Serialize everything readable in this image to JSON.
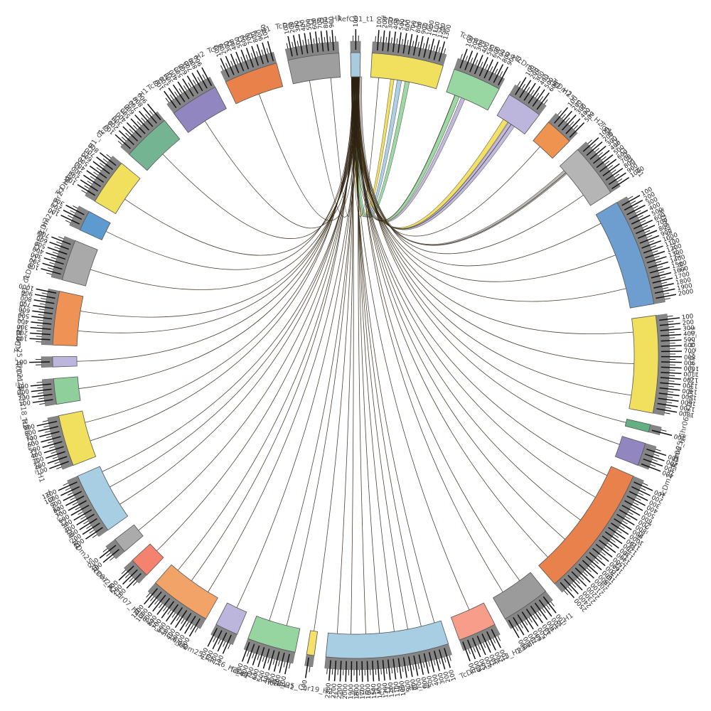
{
  "chart_data": {
    "type": "circos",
    "title": "",
    "reference": {
      "label": "RefC01_t1",
      "color": "#A9CBE0",
      "size": 190,
      "tick_labels": [
        100
      ]
    },
    "axis": {
      "tick_interval": 100,
      "minor_interval": 50,
      "units": "x100"
    },
    "segments": [
      {
        "label": "TcDm25_Chr10_H1",
        "color": "#F0E05E",
        "size": 1400,
        "links": [
          0.12
        ]
      },
      {
        "label": "TcDm25_Chr10_H2",
        "color": "#98D6A2",
        "size": 950,
        "links": [
          0.2
        ]
      },
      {
        "label": "TcDm25_Chr22_H2",
        "color": "#BDB6DC",
        "size": 700,
        "links": [
          0.5
        ]
      },
      {
        "label": "TcDm25_Chr22_H2_c1",
        "color": "#EF9350",
        "size": 550,
        "links": [
          0.35
        ]
      },
      {
        "label": "TcDm25_Chr02_H1",
        "color": "#B5B5B5",
        "size": 1050,
        "links": [
          0.18,
          0.75
        ]
      },
      {
        "label": "TcDm25_Chr02_H2",
        "color": "#6D9ECF",
        "size": 2100,
        "links": [
          0.1,
          0.45,
          0.8
        ]
      },
      {
        "label": "TcDm25_Chr02_H2_c1",
        "color": "#F0E05E",
        "size": 1900,
        "links": [
          0.15,
          0.5,
          0.85
        ]
      },
      {
        "label": "TcDm25_Chr06_H1",
        "color": "#63B183",
        "size": 150,
        "links": [
          0.5
        ]
      },
      {
        "label": "TcDm25_Chr06_H2",
        "color": "#9186C0",
        "size": 450,
        "links": [
          0.4
        ]
      },
      {
        "label": "TcDm25_Chr30_H2_c1",
        "color": "#E8814C",
        "size": 2600,
        "links": [
          0.08,
          0.28,
          0.5,
          0.7,
          0.9
        ]
      },
      {
        "label": "TcDm25_Chr19_H1",
        "color": "#9B9B9B",
        "size": 950,
        "links": [
          0.3,
          0.75
        ]
      },
      {
        "label": "TcDm25_Chr13_H2",
        "color": "#F99D8B",
        "size": 750,
        "links": [
          0.45
        ]
      },
      {
        "label": "TcDm25_Chr30_H1_c1",
        "color": "#A8CEE4",
        "size": 2400,
        "links": [
          0.06,
          0.18,
          0.3,
          0.42,
          0.55,
          0.67,
          0.8,
          0.92
        ]
      },
      {
        "label": "TcDm25_Chr19_H2_c1",
        "color": "#F4E06A",
        "size": 150,
        "links": [
          0.5
        ]
      },
      {
        "label": "TcDm25_Chr08_H1",
        "color": "#96D5A0",
        "size": 950,
        "links": [
          0.3,
          0.7
        ]
      },
      {
        "label": "TcDm25_Chr16_H2_c1",
        "color": "#BDB6DC",
        "size": 450,
        "links": [
          0.5
        ]
      },
      {
        "label": "TcDm25_Chr16_H1",
        "color": "#F2A368",
        "size": 1200,
        "links": [
          0.2,
          0.55,
          0.85
        ]
      },
      {
        "label": "TcDm25_Chr07_H1",
        "color": "#F5826F",
        "size": 400,
        "links": [
          0.5
        ]
      },
      {
        "label": "TcDm25_Chr07_H2",
        "color": "#ABABAB",
        "size": 300,
        "links": [
          0.5
        ]
      },
      {
        "label": "TcDm25_Chr09_H1",
        "color": "#A8CEE4",
        "size": 1200,
        "links": [
          0.25,
          0.6,
          0.9
        ]
      },
      {
        "label": "TcDm25_Chr18_H1",
        "color": "#F0E05E",
        "size": 1000,
        "links": [
          0.35,
          0.75
        ]
      },
      {
        "label": "TcDm25_Chr18_H2",
        "color": "#8FCF9B",
        "size": 500,
        "links": [
          0.5
        ]
      },
      {
        "label": "TcDm25_Chr21_H1",
        "color": "#BDB6DC",
        "size": 200,
        "links": [
          0.5
        ]
      },
      {
        "label": "TcDm25_Chr31_H1_c1",
        "color": "#EE9255",
        "size": 1050,
        "links": [
          0.3,
          0.7
        ]
      },
      {
        "label": "TcDm25_Chr31_H2",
        "color": "#A9A9A9",
        "size": 800,
        "links": [
          0.45
        ]
      },
      {
        "label": "TcDm25_Chr27_H1",
        "color": "#5D9AD0",
        "size": 400,
        "links": [
          0.5
        ]
      },
      {
        "label": "TcDm25_Chr11_H1_c1",
        "color": "#F0E05E",
        "size": 900,
        "links": [
          0.4
        ]
      },
      {
        "label": "TcDm25_Chr13_H1",
        "color": "#74B492",
        "size": 950,
        "links": [
          0.5
        ]
      },
      {
        "label": "TcDm25_Chr08_H2",
        "color": "#9186C0",
        "size": 950,
        "links": [
          0.45
        ]
      },
      {
        "label": "TcDm25_Chr17_H1",
        "color": "#E8824A",
        "size": 1050,
        "links": [
          0.5
        ]
      },
      {
        "label": "TcDm25_Chr01_H1",
        "color": "#9E9E9E",
        "size": 1000,
        "links": [
          0.35,
          0.8
        ]
      }
    ],
    "ribbons": [
      {
        "seg": 0,
        "frac": 0.3,
        "width_deg": 0.7,
        "color": "#F0E05E"
      },
      {
        "seg": 0,
        "frac": 0.4,
        "width_deg": 0.9,
        "color": "#A8CEE4"
      },
      {
        "seg": 0,
        "frac": 0.52,
        "width_deg": 0.9,
        "color": "#98D6A2"
      },
      {
        "seg": 1,
        "frac": 0.2,
        "width_deg": 1.0,
        "color": "#98D6A2"
      },
      {
        "seg": 1,
        "frac": 0.35,
        "width_deg": 0.8,
        "color": "#BDB6DC"
      },
      {
        "seg": 2,
        "frac": 0.4,
        "width_deg": 1.5,
        "color": "#BDB6DC"
      },
      {
        "seg": 2,
        "frac": 0.22,
        "width_deg": 1.1,
        "color": "#F0E05E"
      },
      {
        "seg": 4,
        "frac": 0.12,
        "width_deg": 0.9,
        "color": "#B5B5B5"
      }
    ],
    "style": {
      "coverage_band_color": "#858585",
      "segment_stroke": "#555555",
      "link_color": "#2E2212",
      "tick_color": "#111111",
      "background": "#FFFFFF"
    },
    "layout": {
      "center": 500,
      "ring_inner": 392,
      "ring_outer": 426,
      "band_inner": 420,
      "band_outer": 442,
      "tick_major_from": 430,
      "tick_major_to": 459,
      "tick_minor_from": 442,
      "tick_minor_to": 450,
      "tick_label_radius": 462,
      "name_radius": 473,
      "gap_deg": 2.2
    }
  }
}
